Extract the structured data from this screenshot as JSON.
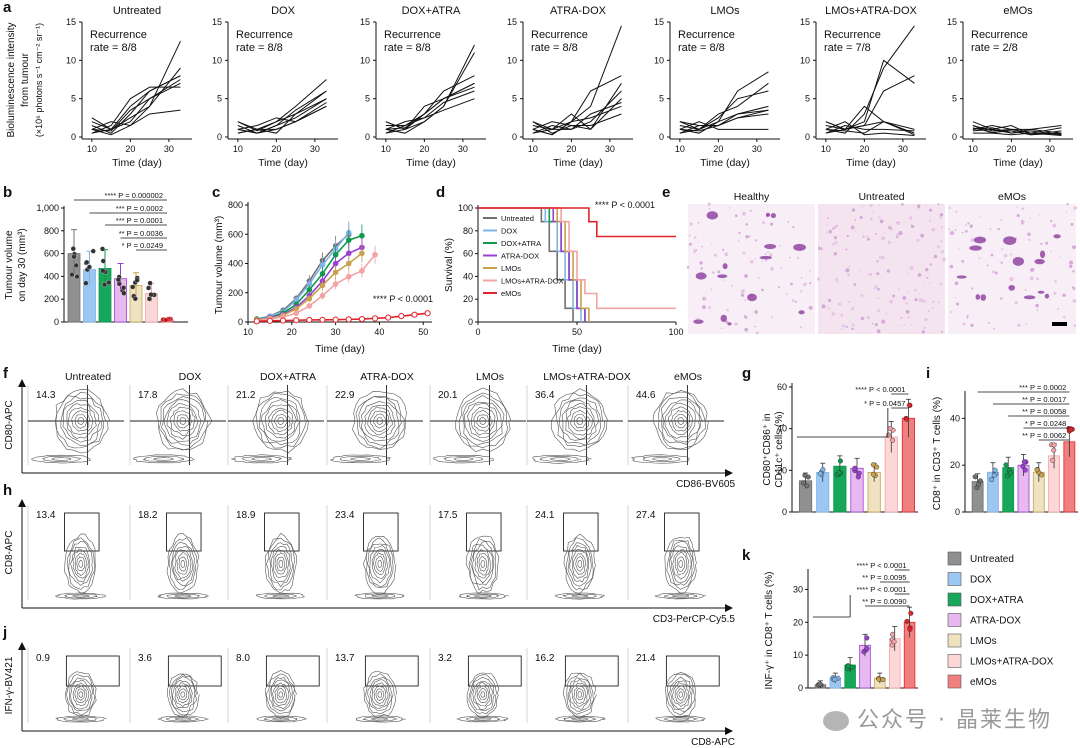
{
  "panel_letters": [
    "a",
    "b",
    "c",
    "d",
    "e",
    "f",
    "g",
    "h",
    "i",
    "j",
    "k"
  ],
  "groups": [
    "Untreated",
    "DOX",
    "DOX+ATRA",
    "ATRA-DOX",
    "LMOs",
    "LMOs+ATRA-DOX",
    "eMOs"
  ],
  "colors": {
    "Untreated": "#707070",
    "DOX": "#7fb4ea",
    "DOX+ATRA": "#0f9a4c",
    "ATRA-DOX": "#9a3fd4",
    "LMOs": "#c9a24e",
    "LMOs+ATRA-DOX": "#f2a3a3",
    "eMOs": "#e2232a"
  },
  "bar_fills": {
    "Untreated": "#909090",
    "DOX": "#9cc7f2",
    "DOX+ATRA": "#17a65a",
    "ATRA-DOX": "#e8b8f0",
    "LMOs": "#efe2c0",
    "LMOs+ATRA-DOX": "#fbd7d7",
    "eMOs": "#f08080"
  },
  "panel_a": {
    "ylabel_lines": [
      "Bioluminescence intensity",
      "from tumour",
      "(×10⁶ photons s⁻¹ cm⁻² sr⁻¹)"
    ],
    "xlabel": "Time (day)",
    "recurrence_label": "Recurrence",
    "rates": [
      "rate = 8/8",
      "rate = 8/8",
      "rate = 8/8",
      "rate = 8/8",
      "rate = 8/8",
      "rate = 7/8",
      "rate = 2/8"
    ],
    "yticks": [
      "0",
      "5",
      "10",
      "15"
    ],
    "xticks": [
      "10",
      "20",
      "30"
    ]
  },
  "panel_b": {
    "ylabel_lines": [
      "Tumour volume",
      "on day 30 (mm³)"
    ],
    "yticks": [
      "0",
      "200",
      "400",
      "600",
      "800",
      "1,000"
    ],
    "sig": [
      "**** P = 0.000002",
      "*** P = 0.0002",
      "*** P = 0.0001",
      "** P = 0.0036",
      "* P = 0.0249"
    ]
  },
  "panel_c": {
    "ylabel": "Tumour volume (mm³)",
    "xlabel": "Time (day)",
    "yticks": [
      "0",
      "200",
      "400",
      "600",
      "800"
    ],
    "xticks": [
      "10",
      "20",
      "30",
      "40",
      "50"
    ],
    "sig": "**** P < 0.0001"
  },
  "panel_d": {
    "ylabel": "Survival (%)",
    "xlabel": "Time (day)",
    "yticks": [
      "0",
      "20",
      "40",
      "60",
      "80",
      "100"
    ],
    "xticks": [
      "0",
      "50",
      "100"
    ],
    "sig": "**** P < 0.0001"
  },
  "panel_e": {
    "labels": [
      "Healthy",
      "Untreated",
      "eMOs"
    ]
  },
  "panel_f": {
    "values": [
      "14.3",
      "17.8",
      "21.2",
      "22.9",
      "20.1",
      "36.4",
      "44.6"
    ],
    "ylabel": "CD80-APC",
    "xlabel": "CD86-BV605"
  },
  "panel_h": {
    "values": [
      "13.4",
      "18.2",
      "18.9",
      "23.4",
      "17.5",
      "24.1",
      "27.4"
    ],
    "ylabel": "CD8-APC",
    "xlabel": "CD3-PerCP-Cy5.5"
  },
  "panel_j": {
    "values": [
      "0.9",
      "3.6",
      "8.0",
      "13.7",
      "3.2",
      "16.2",
      "21.4"
    ],
    "ylabel": "IFN-γ-BV421",
    "xlabel": "CD8-APC"
  },
  "panel_g": {
    "ylabel_lines": [
      "CD80⁺CD86⁺ in",
      "CD11c⁺ cells (%)"
    ],
    "yticks": [
      "0",
      "20",
      "40",
      "60"
    ],
    "sig": [
      "**** P < 0.0001",
      "* P = 0.0457"
    ]
  },
  "panel_i": {
    "ylabel": "CD8⁺ in CD3⁺ T cells (%)",
    "yticks": [
      "0",
      "20",
      "40"
    ],
    "sig": [
      "*** P = 0.0002",
      "** P = 0.0017",
      "** P = 0.0058",
      "* P = 0.0248",
      "** P = 0.0062"
    ]
  },
  "panel_k": {
    "ylabel": "INF-γ⁺ in CD8⁺ T cells (%)",
    "yticks": [
      "0",
      "10",
      "20",
      "30"
    ],
    "sig": [
      "**** P < 0.0001",
      "** P = 0.0095",
      "**** P < 0.0001",
      "** P = 0.0090"
    ]
  },
  "legend_items": [
    "Untreated",
    "DOX",
    "DOX+ATRA",
    "ATRA-DOX",
    "LMOs",
    "LMOs+ATRA-DOX",
    "eMOs"
  ],
  "watermark": "公众号 · 晶莱生物",
  "chart_data": [
    {
      "type": "line",
      "panel": "b",
      "title": "",
      "xlabel": "",
      "ylabel": "Tumour volume on day 30 (mm³)",
      "ylim": [
        0,
        1000
      ],
      "categories": [
        "Untreated",
        "DOX",
        "DOX+ATRA",
        "ATRA-DOX",
        "LMOs",
        "LMOs+ATRA-DOX",
        "eMOs"
      ],
      "values": [
        600,
        460,
        470,
        380,
        320,
        250,
        20
      ]
    },
    {
      "type": "line",
      "panel": "c",
      "xlabel": "Time (day)",
      "ylabel": "Tumour volume (mm³)",
      "ylim": [
        0,
        800
      ],
      "xlim": [
        10,
        52
      ],
      "series": [
        {
          "name": "Untreated",
          "x": [
            12,
            15,
            18,
            21,
            24,
            27,
            30,
            33
          ],
          "values": [
            20,
            40,
            80,
            160,
            280,
            420,
            520,
            600
          ]
        },
        {
          "name": "DOX",
          "x": [
            12,
            15,
            18,
            21,
            24,
            27,
            30,
            33
          ],
          "values": [
            20,
            40,
            70,
            150,
            260,
            390,
            500,
            610
          ]
        },
        {
          "name": "DOX+ATRA",
          "x": [
            12,
            15,
            18,
            21,
            24,
            27,
            30,
            33,
            36
          ],
          "values": [
            20,
            30,
            60,
            120,
            220,
            330,
            460,
            560,
            590
          ]
        },
        {
          "name": "ATRA-DOX",
          "x": [
            12,
            15,
            18,
            21,
            24,
            27,
            30,
            33,
            36
          ],
          "values": [
            15,
            30,
            50,
            100,
            180,
            280,
            400,
            470,
            510
          ]
        },
        {
          "name": "LMOs",
          "x": [
            12,
            15,
            18,
            21,
            24,
            27,
            30,
            33,
            36
          ],
          "values": [
            15,
            25,
            45,
            90,
            160,
            250,
            340,
            400,
            470
          ]
        },
        {
          "name": "LMOs+ATRA-DOX",
          "x": [
            12,
            15,
            18,
            21,
            24,
            27,
            30,
            33,
            36,
            39
          ],
          "values": [
            10,
            20,
            35,
            60,
            110,
            180,
            260,
            310,
            350,
            460
          ]
        },
        {
          "name": "eMOs",
          "x": [
            12,
            15,
            18,
            21,
            24,
            27,
            30,
            33,
            36,
            39,
            42,
            45,
            48,
            51
          ],
          "values": [
            5,
            8,
            10,
            12,
            14,
            15,
            16,
            18,
            20,
            25,
            30,
            40,
            50,
            60
          ]
        }
      ]
    },
    {
      "type": "line",
      "panel": "d",
      "xlabel": "Time (day)",
      "ylabel": "Survival (%)",
      "ylim": [
        0,
        100
      ],
      "xlim": [
        0,
        100
      ],
      "series": [
        {
          "name": "Untreated",
          "x": [
            0,
            32,
            36,
            40,
            44,
            48
          ],
          "values": [
            100,
            88,
            62,
            37,
            12,
            0
          ]
        },
        {
          "name": "DOX",
          "x": [
            0,
            34,
            40,
            44,
            48,
            52
          ],
          "values": [
            100,
            88,
            62,
            37,
            12,
            0
          ]
        },
        {
          "name": "DOX+ATRA",
          "x": [
            0,
            36,
            42,
            46,
            50,
            54
          ],
          "values": [
            100,
            88,
            62,
            37,
            12,
            0
          ]
        },
        {
          "name": "ATRA-DOX",
          "x": [
            0,
            38,
            42,
            46,
            50,
            54
          ],
          "values": [
            100,
            88,
            62,
            37,
            12,
            0
          ]
        },
        {
          "name": "LMOs",
          "x": [
            0,
            40,
            44,
            48,
            52,
            56
          ],
          "values": [
            100,
            88,
            62,
            37,
            12,
            0
          ]
        },
        {
          "name": "LMOs+ATRA-DOX",
          "x": [
            0,
            42,
            46,
            50,
            54,
            60,
            100
          ],
          "values": [
            100,
            88,
            62,
            37,
            25,
            12,
            12
          ]
        },
        {
          "name": "eMOs",
          "x": [
            0,
            56,
            60,
            100
          ],
          "values": [
            100,
            88,
            75,
            75
          ]
        }
      ]
    },
    {
      "type": "bar",
      "panel": "g",
      "ylabel": "CD80⁺CD86⁺ in CD11c⁺ cells (%)",
      "ylim": [
        0,
        60
      ],
      "categories": [
        "Untreated",
        "DOX",
        "DOX+ATRA",
        "ATRA-DOX",
        "LMOs",
        "LMOs+ATRA-DOX",
        "eMOs"
      ],
      "values": [
        15,
        19,
        22,
        21,
        19,
        36,
        45
      ]
    },
    {
      "type": "bar",
      "panel": "i",
      "ylabel": "CD8⁺ in CD3⁺ T cells (%)",
      "ylim": [
        0,
        50
      ],
      "categories": [
        "Untreated",
        "DOX",
        "DOX+ATRA",
        "ATRA-DOX",
        "LMOs",
        "LMOs+ATRA-DOX",
        "eMOs"
      ],
      "values": [
        13,
        17,
        19,
        20,
        17,
        24,
        30
      ]
    },
    {
      "type": "bar",
      "panel": "k",
      "ylabel": "INF-γ⁺ in CD8⁺ T cells (%)",
      "ylim": [
        0,
        35
      ],
      "categories": [
        "Untreated",
        "DOX",
        "DOX+ATRA",
        "ATRA-DOX",
        "LMOs",
        "LMOs+ATRA-DOX",
        "eMOs"
      ],
      "values": [
        1,
        3,
        7,
        13,
        3,
        15,
        20
      ]
    }
  ]
}
